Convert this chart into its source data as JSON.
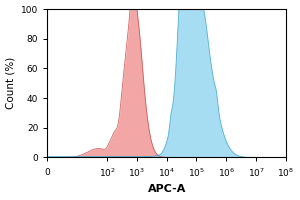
{
  "xlabel": "APC-A",
  "ylabel": "Count (%)",
  "ylim": [
    0,
    100
  ],
  "xlim": [
    1,
    100000000.0
  ],
  "yticks": [
    0,
    20,
    40,
    60,
    80,
    100
  ],
  "red_peak": 800,
  "red_sigma_log": 0.28,
  "red_peak_height": 97,
  "blue_peak": 120000,
  "blue_sigma_log": 0.45,
  "blue_peak_height": 88,
  "blue_secondary_peak": 35000,
  "blue_secondary_height": 65,
  "blue_secondary_sigma": 0.2,
  "red_fill_color": "#f08888",
  "red_edge_color": "#cc5555",
  "blue_fill_color": "#77ccee",
  "blue_edge_color": "#44aacc",
  "background_color": "#ffffff",
  "xlabel_fontsize": 8,
  "ylabel_fontsize": 7.5,
  "tick_fontsize": 6.5
}
